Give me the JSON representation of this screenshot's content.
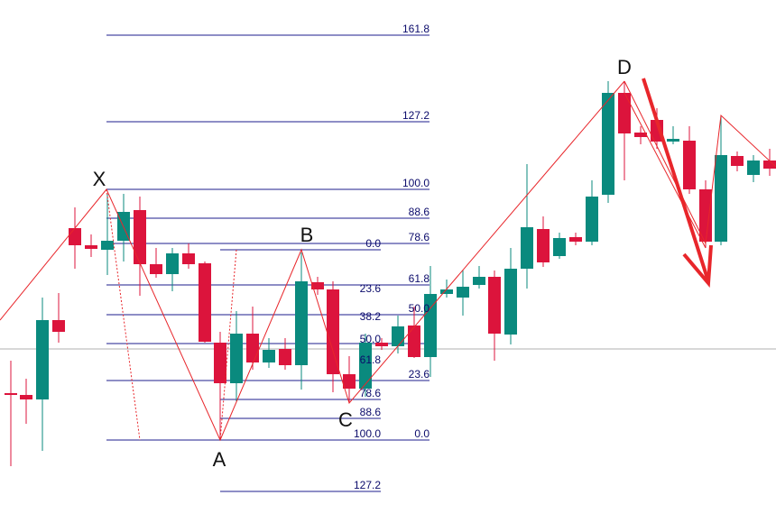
{
  "pattern_points": [
    "X",
    "A",
    "B",
    "C",
    "D"
  ],
  "xa_fib_levels": [
    "161.8",
    "127.2",
    "100.0",
    "88.6",
    "78.6",
    "61.8",
    "50.0",
    "23.6",
    "0.0"
  ],
  "ab_fib_levels": [
    "0.0",
    "23.6",
    "38.2",
    "50.0",
    "61.8",
    "78.6",
    "88.6",
    "100.0",
    "127.2"
  ]
}
